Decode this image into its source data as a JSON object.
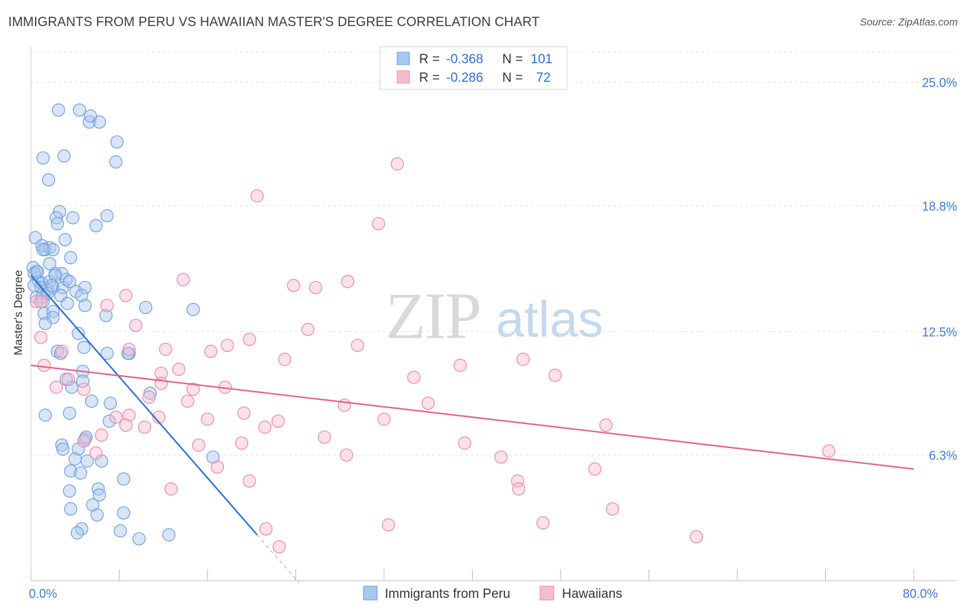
{
  "header": {
    "title": "IMMIGRANTS FROM PERU VS HAWAIIAN MASTER'S DEGREE CORRELATION CHART",
    "source": "Source: ZipAtlas.com"
  },
  "chart_data": {
    "type": "scatter",
    "title": "IMMIGRANTS FROM PERU VS HAWAIIAN MASTER'S DEGREE CORRELATION CHART",
    "xlabel": "",
    "ylabel": "Master's Degree",
    "xlim": [
      0,
      80
    ],
    "ylim": [
      0,
      26.5
    ],
    "x_tick_labels": [
      {
        "value": 0,
        "label": "0.0%"
      },
      {
        "value": 80,
        "label": "80.0%"
      }
    ],
    "y_tick_labels": [
      {
        "value": 6.3,
        "label": "6.3%"
      },
      {
        "value": 12.5,
        "label": "12.5%"
      },
      {
        "value": 18.8,
        "label": "18.8%"
      },
      {
        "value": 25.0,
        "label": "25.0%"
      }
    ],
    "grid": true,
    "watermark": {
      "zip": "ZIP",
      "atlas": "atlas"
    },
    "legend_position": "top-center",
    "stats": [
      {
        "r_label": "R =",
        "r_value": "-0.368",
        "n_label": "N =",
        "n_value": "101"
      },
      {
        "r_label": "R =",
        "r_value": "-0.286",
        "n_label": "N =",
        "n_value": "72"
      }
    ],
    "series": [
      {
        "name": "Immigrants from Peru",
        "color": "#6f9fdc",
        "fill": "#a9c6ee",
        "line_color": "#2f6fd0",
        "trend": {
          "x0": 0,
          "y0": 15.3,
          "x1": 20.5,
          "y1": 2.3,
          "dash_to_x": 24.3
        },
        "points": [
          [
            2.5,
            23.6
          ],
          [
            4.4,
            23.6
          ],
          [
            5.3,
            23.0
          ],
          [
            6.2,
            23.0
          ],
          [
            5.4,
            23.3
          ],
          [
            7.8,
            22.0
          ],
          [
            1.1,
            21.2
          ],
          [
            3.0,
            21.3
          ],
          [
            7.7,
            21.0
          ],
          [
            1.6,
            20.1
          ],
          [
            2.6,
            18.5
          ],
          [
            2.3,
            18.2
          ],
          [
            3.8,
            18.2
          ],
          [
            2.4,
            17.9
          ],
          [
            6.9,
            18.3
          ],
          [
            5.9,
            17.8
          ],
          [
            0.4,
            17.2
          ],
          [
            3.1,
            17.1
          ],
          [
            1.0,
            16.8
          ],
          [
            1.3,
            16.6
          ],
          [
            1.7,
            16.7
          ],
          [
            2.0,
            16.6
          ],
          [
            3.6,
            16.2
          ],
          [
            1.7,
            15.9
          ],
          [
            0.2,
            15.7
          ],
          [
            0.5,
            15.5
          ],
          [
            0.3,
            15.4
          ],
          [
            2.2,
            15.4
          ],
          [
            2.8,
            15.4
          ],
          [
            0.7,
            15.0
          ],
          [
            1.0,
            14.9
          ],
          [
            1.7,
            15.0
          ],
          [
            3.2,
            15.1
          ],
          [
            0.9,
            14.7
          ],
          [
            1.5,
            14.6
          ],
          [
            2.0,
            14.7
          ],
          [
            2.9,
            14.7
          ],
          [
            4.1,
            14.5
          ],
          [
            4.9,
            14.7
          ],
          [
            0.5,
            14.2
          ],
          [
            1.0,
            14.2
          ],
          [
            1.1,
            14.0
          ],
          [
            2.7,
            14.3
          ],
          [
            4.6,
            14.3
          ],
          [
            3.3,
            13.9
          ],
          [
            1.2,
            13.4
          ],
          [
            2.0,
            13.5
          ],
          [
            2.0,
            13.2
          ],
          [
            4.9,
            13.8
          ],
          [
            6.8,
            13.3
          ],
          [
            1.3,
            12.9
          ],
          [
            10.4,
            13.7
          ],
          [
            14.7,
            13.6
          ],
          [
            4.3,
            12.4
          ],
          [
            4.8,
            11.7
          ],
          [
            2.4,
            11.5
          ],
          [
            2.7,
            11.4
          ],
          [
            6.9,
            11.4
          ],
          [
            8.9,
            11.4
          ],
          [
            8.8,
            11.4
          ],
          [
            4.7,
            10.5
          ],
          [
            3.2,
            10.1
          ],
          [
            4.7,
            10.0
          ],
          [
            3.7,
            9.7
          ],
          [
            10.8,
            9.4
          ],
          [
            5.5,
            9.0
          ],
          [
            7.2,
            8.9
          ],
          [
            1.3,
            8.3
          ],
          [
            3.5,
            8.4
          ],
          [
            7.1,
            8.0
          ],
          [
            4.9,
            7.1
          ],
          [
            5.0,
            7.2
          ],
          [
            2.8,
            6.8
          ],
          [
            2.9,
            6.6
          ],
          [
            4.3,
            6.6
          ],
          [
            4.0,
            6.1
          ],
          [
            5.1,
            6.0
          ],
          [
            6.4,
            6.0
          ],
          [
            16.5,
            6.2
          ],
          [
            3.6,
            5.5
          ],
          [
            4.5,
            5.4
          ],
          [
            8.4,
            5.1
          ],
          [
            6.1,
            4.6
          ],
          [
            3.5,
            4.5
          ],
          [
            6.2,
            4.3
          ],
          [
            5.6,
            3.8
          ],
          [
            3.6,
            3.6
          ],
          [
            8.4,
            3.4
          ],
          [
            6.0,
            3.3
          ],
          [
            4.6,
            2.6
          ],
          [
            4.2,
            2.4
          ],
          [
            8.1,
            2.5
          ],
          [
            9.8,
            2.1
          ],
          [
            12.5,
            2.3
          ],
          [
            0.3,
            14.8
          ],
          [
            1.5,
            14.4
          ],
          [
            2.2,
            15.3
          ],
          [
            0.6,
            15.5
          ],
          [
            1.9,
            14.8
          ],
          [
            3.5,
            15.0
          ],
          [
            1.1,
            16.6
          ]
        ]
      },
      {
        "name": "Hawaiians",
        "color": "#e98aa8",
        "fill": "#f5bcd0",
        "line_color": "#e0658f",
        "trend": {
          "x0": 0,
          "y0": 10.8,
          "x1": 80,
          "y1": 5.6
        },
        "points": [
          [
            33.2,
            20.9
          ],
          [
            20.5,
            19.3
          ],
          [
            31.5,
            17.9
          ],
          [
            13.8,
            15.1
          ],
          [
            28.7,
            15.0
          ],
          [
            23.8,
            14.8
          ],
          [
            25.8,
            14.7
          ],
          [
            8.6,
            14.3
          ],
          [
            0.5,
            14.0
          ],
          [
            0.9,
            14.0
          ],
          [
            6.9,
            13.8
          ],
          [
            9.5,
            12.8
          ],
          [
            25.1,
            12.6
          ],
          [
            0.9,
            12.2
          ],
          [
            19.8,
            12.1
          ],
          [
            12.2,
            11.6
          ],
          [
            8.9,
            11.6
          ],
          [
            16.3,
            11.5
          ],
          [
            2.8,
            11.5
          ],
          [
            17.8,
            11.8
          ],
          [
            29.6,
            11.8
          ],
          [
            23.0,
            11.1
          ],
          [
            44.6,
            11.1
          ],
          [
            1.2,
            10.8
          ],
          [
            38.9,
            10.8
          ],
          [
            13.4,
            10.6
          ],
          [
            11.8,
            10.4
          ],
          [
            47.5,
            10.3
          ],
          [
            34.7,
            10.2
          ],
          [
            3.4,
            10.1
          ],
          [
            2.3,
            9.7
          ],
          [
            11.8,
            9.9
          ],
          [
            17.6,
            9.7
          ],
          [
            4.8,
            9.6
          ],
          [
            14.7,
            9.6
          ],
          [
            10.7,
            9.2
          ],
          [
            14.2,
            9.0
          ],
          [
            36.0,
            8.9
          ],
          [
            28.4,
            8.8
          ],
          [
            19.3,
            8.4
          ],
          [
            8.9,
            8.3
          ],
          [
            7.7,
            8.2
          ],
          [
            11.6,
            8.2
          ],
          [
            16.0,
            8.1
          ],
          [
            22.4,
            8.0
          ],
          [
            32.0,
            8.1
          ],
          [
            8.6,
            7.8
          ],
          [
            10.3,
            7.7
          ],
          [
            21.2,
            7.7
          ],
          [
            52.1,
            7.8
          ],
          [
            6.4,
            7.3
          ],
          [
            26.6,
            7.2
          ],
          [
            15.2,
            6.8
          ],
          [
            19.1,
            6.9
          ],
          [
            39.3,
            6.9
          ],
          [
            5.9,
            6.4
          ],
          [
            28.6,
            6.3
          ],
          [
            42.6,
            6.2
          ],
          [
            72.3,
            6.5
          ],
          [
            16.9,
            5.7
          ],
          [
            51.1,
            5.6
          ],
          [
            19.8,
            5.0
          ],
          [
            44.1,
            5.0
          ],
          [
            12.7,
            4.6
          ],
          [
            44.2,
            4.6
          ],
          [
            52.7,
            3.6
          ],
          [
            32.4,
            2.8
          ],
          [
            46.4,
            2.9
          ],
          [
            21.3,
            2.6
          ],
          [
            22.5,
            1.7
          ],
          [
            60.3,
            2.2
          ],
          [
            4.8,
            7.0
          ]
        ]
      }
    ]
  }
}
